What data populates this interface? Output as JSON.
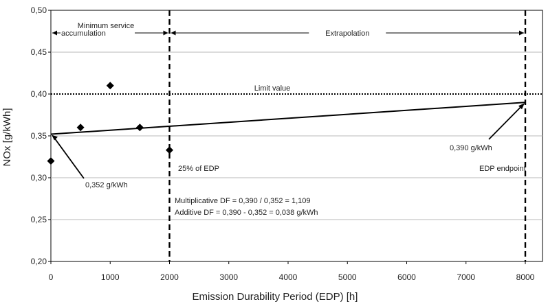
{
  "chart_data": {
    "type": "scatter",
    "xlabel": "Emission Durability Period (EDP) [h]",
    "ylabel": "NOx [g/kWh]",
    "xlim": [
      0,
      8000
    ],
    "ylim": [
      0.2,
      0.5
    ],
    "grid": true,
    "x_ticks": [
      "0",
      "1000",
      "2000",
      "3000",
      "4000",
      "5000",
      "6000",
      "7000",
      "8000"
    ],
    "y_ticks": [
      "0,20",
      "0,25",
      "0,30",
      "0,35",
      "0,40",
      "0,45",
      "0,50"
    ],
    "series": [
      {
        "kind": "points",
        "marker": "diamond",
        "x": [
          0,
          500,
          1000,
          1500,
          2000
        ],
        "y": [
          0.32,
          0.36,
          0.41,
          0.36,
          0.333
        ]
      },
      {
        "kind": "line",
        "x": [
          0,
          8000
        ],
        "y": [
          0.352,
          0.39
        ]
      }
    ],
    "reference_lines": [
      {
        "orientation": "horizontal",
        "value": 0.4,
        "style": "dotted",
        "label": "Limit value"
      },
      {
        "orientation": "vertical",
        "value": 2000,
        "style": "dashed"
      },
      {
        "orientation": "vertical",
        "value": 8000,
        "style": "dashed"
      }
    ],
    "range_labels": [
      {
        "from": 0,
        "to": 2000,
        "line1": "Minimum service",
        "line2": "accumulation"
      },
      {
        "from": 2000,
        "to": 8000,
        "line1": "Extrapolation"
      }
    ],
    "annotations": {
      "start_value": "0,352 g/kWh",
      "end_value": "0,390 g/kWh",
      "edp_25": "25% of EDP",
      "edp_endpoint": "EDP endpoint",
      "multiplicative_df": "Multiplicative DF = 0,390 / 0,352 =   1,109",
      "additive_df": "Additive DF = 0,390 - 0,352 =  0,038 g/kWh"
    }
  }
}
